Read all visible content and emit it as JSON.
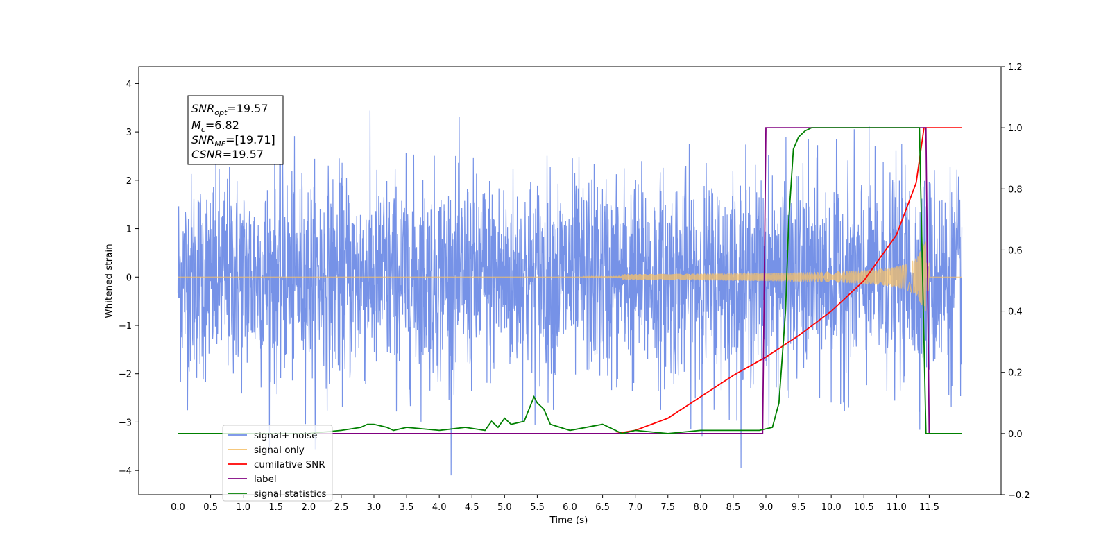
{
  "chart_data": {
    "type": "line",
    "xlabel": "Time (s)",
    "ylabel": "Whitened strain",
    "xlim": [
      -0.6,
      12.6
    ],
    "ylim": [
      -4.5,
      4.35
    ],
    "y2lim": [
      -0.2,
      1.2
    ],
    "xticks": [
      "0.0",
      "0.5",
      "1.0",
      "1.5",
      "2.0",
      "2.5",
      "3.0",
      "3.5",
      "4.0",
      "4.5",
      "5.0",
      "5.5",
      "6.0",
      "6.5",
      "7.0",
      "7.5",
      "8.0",
      "8.5",
      "9.0",
      "9.5",
      "10.0",
      "10.5",
      "11.0",
      "11.5"
    ],
    "yticks": [
      "4",
      "3",
      "2",
      "1",
      "0",
      "−1",
      "−2",
      "−3",
      "−4"
    ],
    "y2ticks": [
      "1.2",
      "1.0",
      "0.8",
      "0.6",
      "0.4",
      "0.2",
      "0.0",
      "−0.2"
    ],
    "grid": false,
    "legend_position": "lower-left",
    "annotation": {
      "snr_opt": {
        "base": "SNR",
        "sub": "opt",
        "value": "=19.57"
      },
      "mc": {
        "base": "M",
        "sub": "c",
        "value": "=6.82"
      },
      "snr_mf": {
        "base": "SNR",
        "sub": "MF",
        "value": "=[19.71]"
      },
      "csnr": {
        "base": "CSNR",
        "value": "=19.57"
      }
    },
    "series": [
      {
        "name": "signal+ noise",
        "color": "#6f8ce6",
        "axis": "left",
        "description": "noise, amplitude about ±2.5, peaks to ±4"
      },
      {
        "name": "signal only",
        "color": "#f5c06a",
        "axis": "left",
        "chirp_start": 6.8,
        "merger": 11.45
      },
      {
        "name": "cumilative SNR",
        "color": "#ff0000",
        "axis": "right",
        "x": [
          0.0,
          6.7,
          7.0,
          7.5,
          8.0,
          8.5,
          9.0,
          9.5,
          10.0,
          10.5,
          11.0,
          11.3,
          11.42,
          11.5,
          12.0
        ],
        "y": [
          0.0,
          0.0,
          0.01,
          0.05,
          0.12,
          0.19,
          0.25,
          0.32,
          0.4,
          0.5,
          0.65,
          0.82,
          1.0,
          1.0,
          1.0
        ]
      },
      {
        "name": "label",
        "color": "#800080",
        "axis": "right",
        "x": [
          0.0,
          8.95,
          9.0,
          11.45,
          11.5,
          12.0
        ],
        "y": [
          0.0,
          0.0,
          1.0,
          1.0,
          0.0,
          0.0
        ]
      },
      {
        "name": "signal statistics",
        "color": "#008000",
        "axis": "right",
        "x": [
          0.0,
          1.0,
          2.0,
          2.5,
          2.8,
          2.9,
          3.0,
          3.2,
          3.3,
          3.5,
          4.0,
          4.4,
          4.7,
          4.8,
          4.9,
          5.0,
          5.1,
          5.3,
          5.45,
          5.5,
          5.6,
          5.7,
          6.0,
          6.5,
          6.6,
          6.8,
          7.0,
          7.5,
          8.0,
          8.5,
          8.9,
          9.1,
          9.2,
          9.3,
          9.35,
          9.42,
          9.5,
          9.6,
          9.7,
          11.35,
          11.4,
          11.45,
          12.0
        ],
        "y": [
          0.0,
          0.0,
          0.0,
          0.01,
          0.02,
          0.03,
          0.03,
          0.02,
          0.01,
          0.02,
          0.01,
          0.02,
          0.01,
          0.04,
          0.02,
          0.05,
          0.03,
          0.04,
          0.12,
          0.1,
          0.08,
          0.03,
          0.01,
          0.03,
          0.02,
          0.0,
          0.01,
          0.0,
          0.01,
          0.01,
          0.01,
          0.02,
          0.1,
          0.4,
          0.7,
          0.93,
          0.97,
          0.99,
          1.0,
          1.0,
          0.5,
          0.0,
          0.0
        ]
      }
    ]
  },
  "legend": {
    "items": [
      {
        "label": "signal+ noise",
        "color": "#6f8ce6"
      },
      {
        "label": "signal only",
        "color": "#f5c06a"
      },
      {
        "label": "cumilative SNR",
        "color": "#ff0000"
      },
      {
        "label": "label",
        "color": "#800080"
      },
      {
        "label": "signal statistics",
        "color": "#008000"
      }
    ]
  }
}
